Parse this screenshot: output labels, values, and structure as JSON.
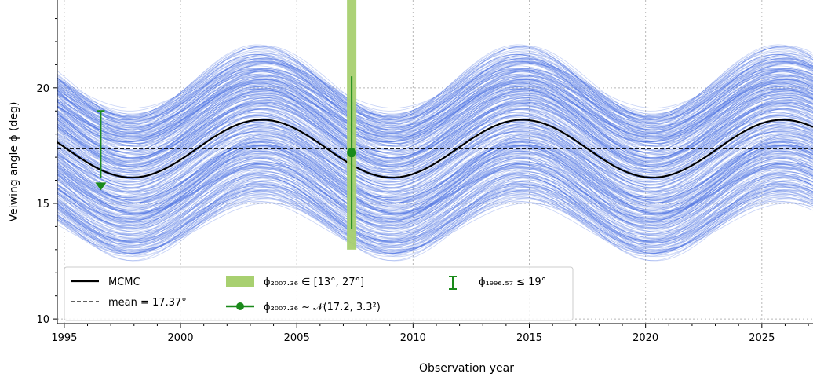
{
  "chart_data": {
    "type": "line",
    "xlabel": "Observation year",
    "ylabel": "Veiwing angle ϕ (deg)",
    "xlim": [
      1994.7,
      2027.2
    ],
    "ylim": [
      9.8,
      23.8
    ],
    "x_ticks": [
      1995,
      2000,
      2005,
      2010,
      2015,
      2020,
      2025
    ],
    "y_ticks": [
      10,
      15,
      20
    ],
    "grid": true,
    "legend_position": "lower-left",
    "mcmc_curve": {
      "name": "MCMC",
      "mean": 17.37,
      "amplitude": 1.25,
      "period_years": 11.2,
      "peak_year": 2003.5,
      "color": "#000000"
    },
    "posterior_samples": {
      "count": 350,
      "mean_range": [
        14.0,
        20.3
      ],
      "amplitude_range": [
        1.0,
        1.7
      ],
      "color": "#4169e1"
    },
    "mean_line": {
      "value": 17.37,
      "label": "mean = 17.37°"
    },
    "range_band": {
      "x": 2007.36,
      "y_range": [
        13,
        27
      ],
      "color": "#a8d070"
    },
    "gaussian_point": {
      "x": 2007.36,
      "y": 17.2,
      "sigma": 3.3,
      "color": "#1a8a1a"
    },
    "upper_limit": {
      "x": 1996.57,
      "y": 19,
      "color": "#1a8a1a"
    },
    "legend": [
      {
        "key": "mcmc",
        "label": "MCMC"
      },
      {
        "key": "mean",
        "label": "mean = 17.37°"
      },
      {
        "key": "band",
        "label": "ϕ₂₀₀₇.₃₆ ∈ [13°, 27°]"
      },
      {
        "key": "gauss",
        "label": "ϕ₂₀₀₇.₃₆ ~ 𝒩(17.2, 3.3²)"
      },
      {
        "key": "ul",
        "label": "ϕ₁₉₉₆.₅₇ ≤ 19°"
      }
    ]
  }
}
